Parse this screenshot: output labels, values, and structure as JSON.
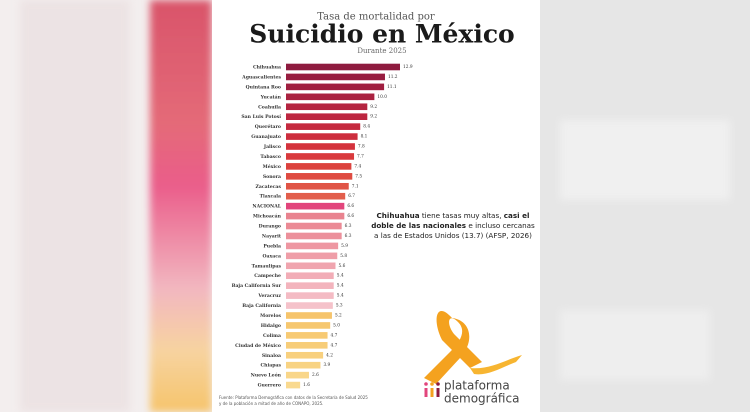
{
  "chart_data": {
    "type": "bar",
    "orientation": "horizontal",
    "title_top": "Tasa de mortalidad por",
    "title": "Suicidio en México",
    "subtitle": "Durante 2025",
    "categories": [
      "Chihuahua",
      "Aguascalientes",
      "Quintana Roo",
      "Yucatán",
      "Coahuila",
      "San Luis Potosí",
      "Querétaro",
      "Guanajuato",
      "Jalisco",
      "Tabasco",
      "México",
      "Sonora",
      "Zacatecas",
      "Tlaxcala",
      "NACIONAL",
      "Michoacán",
      "Durango",
      "Nayarit",
      "Puebla",
      "Oaxaca",
      "Tamaulipas",
      "Campeche",
      "Baja California Sur",
      "Veracruz",
      "Baja California",
      "Morelos",
      "Hidalgo",
      "Colima",
      "Ciudad de México",
      "Sinaloa",
      "Chiapas",
      "Nuevo León",
      "Guerrero"
    ],
    "values": [
      12.9,
      11.2,
      11.1,
      10.0,
      9.2,
      9.2,
      8.4,
      8.1,
      7.8,
      7.7,
      7.4,
      7.5,
      7.1,
      6.7,
      6.6,
      6.6,
      6.3,
      6.3,
      5.9,
      5.8,
      5.6,
      5.4,
      5.4,
      5.4,
      5.3,
      5.2,
      5.0,
      4.7,
      4.7,
      4.2,
      3.9,
      2.6,
      1.6
    ],
    "value_labels": [
      "12.9",
      "11.2",
      "11.1",
      "10.0",
      "9.2",
      "9.2",
      "8.4",
      "8.1",
      "7.8",
      "7.7",
      "7.4",
      "7.5",
      "7.1",
      "6.7",
      "6.6",
      "6.6",
      "6.3",
      "6.3",
      "5.9",
      "5.8",
      "5.6",
      "5.4",
      "5.4",
      "5.4",
      "5.3",
      "5.2",
      "5.0",
      "4.7",
      "4.7",
      "4.2",
      "3.9",
      "2.6",
      "1.6"
    ],
    "colors": [
      "#8e1b3f",
      "#981d40",
      "#a01f40",
      "#aa2240",
      "#b52440",
      "#bd2640",
      "#c52a3f",
      "#cd2e3e",
      "#d4333d",
      "#d93a3d",
      "#dc423e",
      "#df4b41",
      "#e05446",
      "#e25e4c",
      "#e2457c",
      "#e9838f",
      "#eb8a95",
      "#ec909b",
      "#ee97a2",
      "#ef9ea8",
      "#f0a5af",
      "#f2adb7",
      "#f3b4bd",
      "#f4bbc4",
      "#f5c2ca",
      "#f6c46b",
      "#f6c76f",
      "#f7ca74",
      "#f7cd79",
      "#f8d07e",
      "#f8d383",
      "#f9d689",
      "#f9d98f"
    ],
    "annotation": [
      [
        {
          "text": "Chihuahua",
          "bold": true
        },
        {
          "text": " tiene tasas muy altas, ",
          "bold": false
        },
        {
          "text": "casi el",
          "bold": true
        }
      ],
      [
        {
          "text": "doble de las nacionales",
          "bold": true
        },
        {
          "text": " e incluso cercanas",
          "bold": false
        }
      ],
      [
        {
          "text": "a las de Estados Unidos (13.7) (AFSP, 2026)",
          "bold": false
        }
      ]
    ],
    "logo": [
      "plataforma",
      "demográfica"
    ],
    "source": [
      "Fuente: Plataforma Demográfica con datos de la Secretaría de Salud 2025",
      "y de la población a mitad de año de CONAPO, 2025."
    ]
  }
}
